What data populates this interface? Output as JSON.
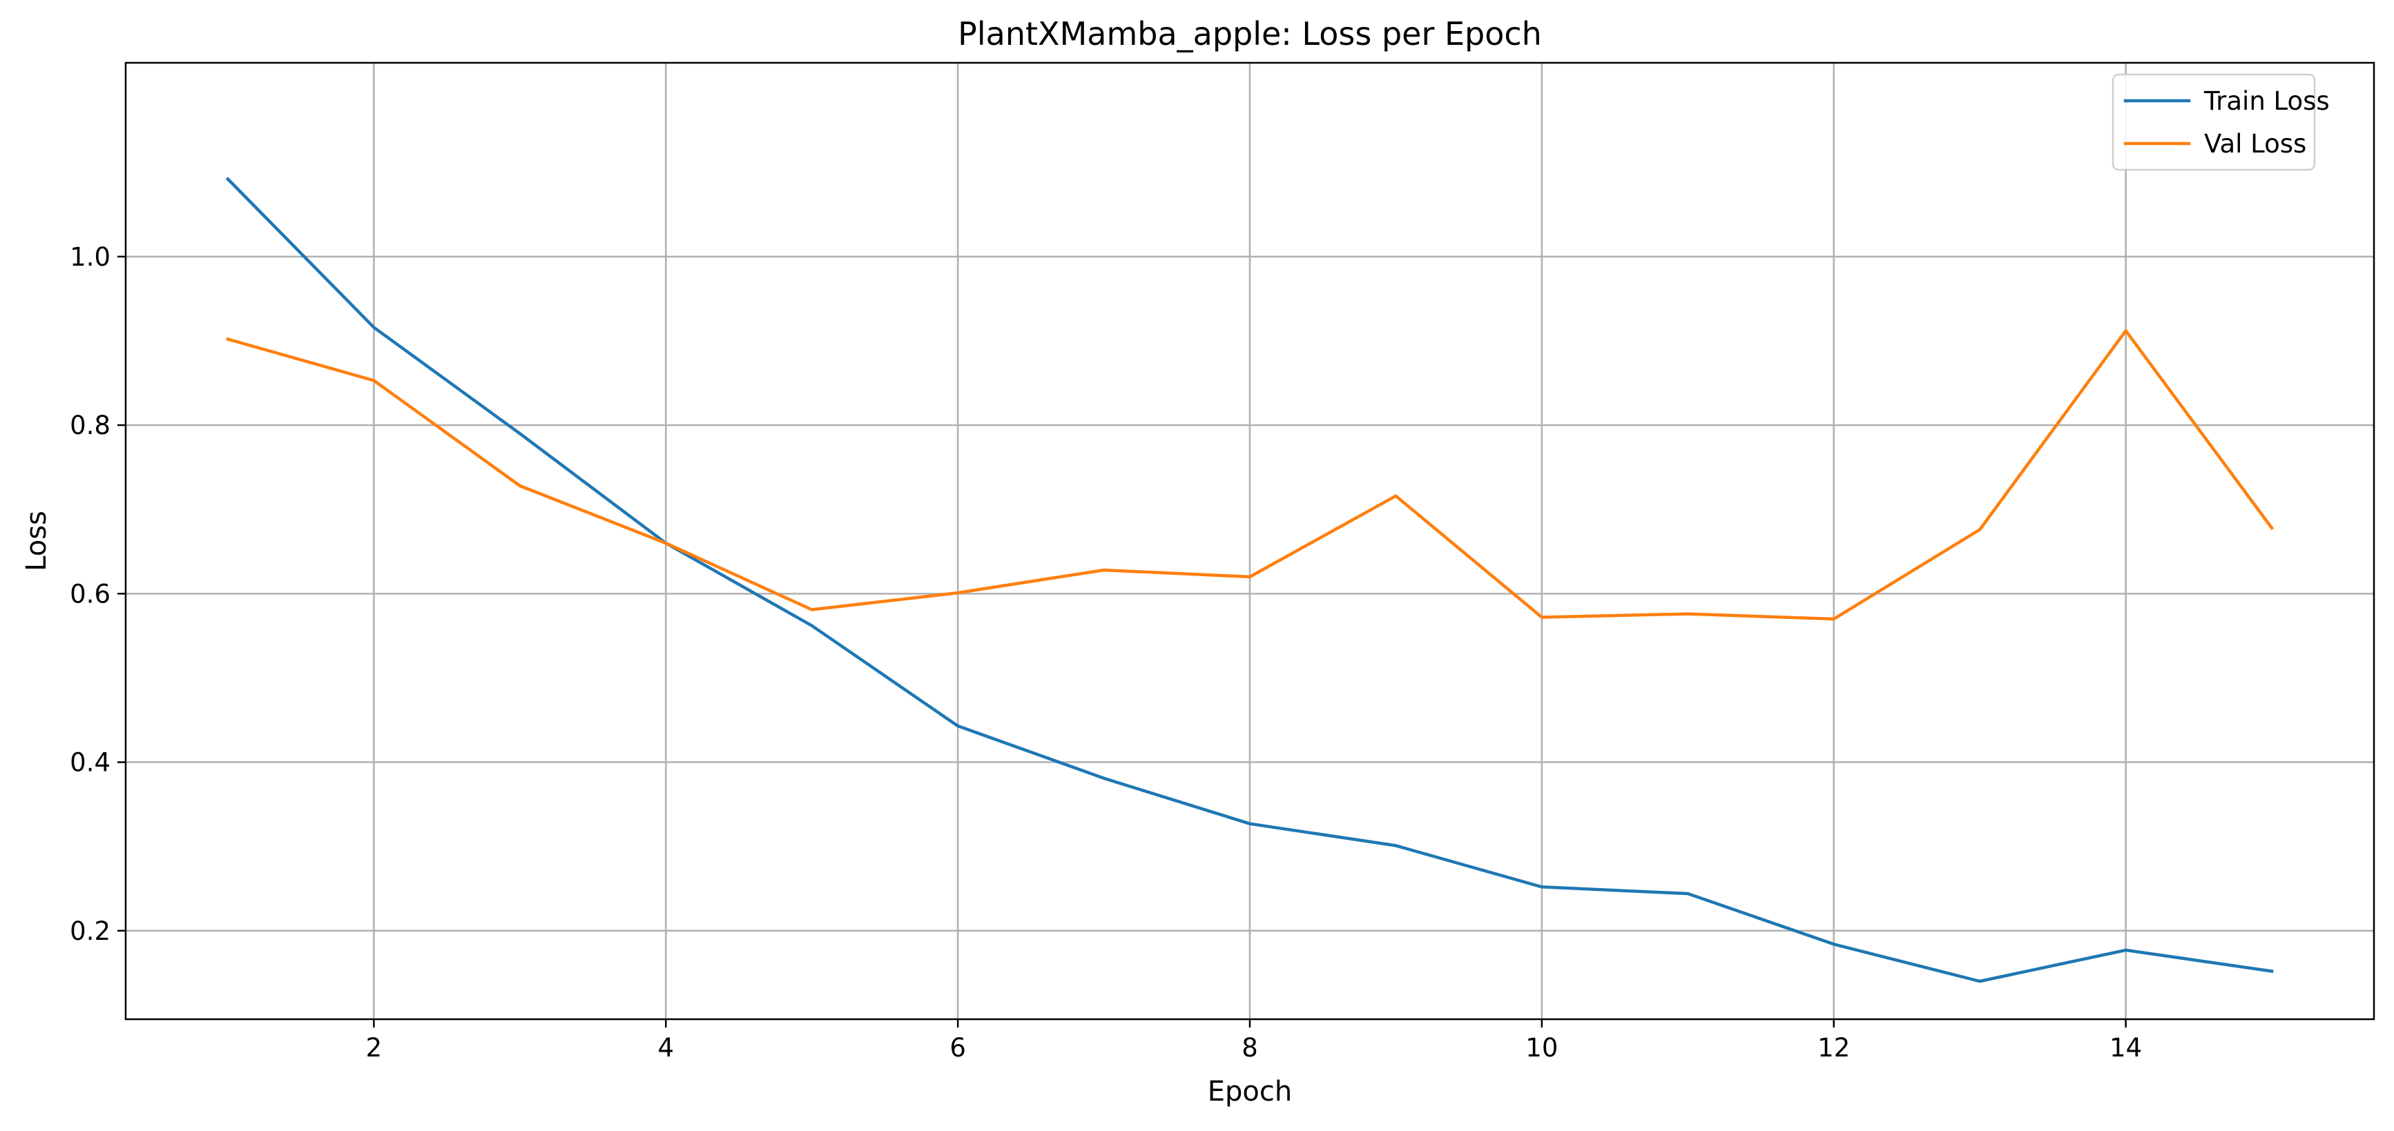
{
  "chart_data": {
    "type": "line",
    "title": "PlantXMamba_apple: Loss per Epoch",
    "xlabel": "Epoch",
    "ylabel": "Loss",
    "xlim": [
      0.3,
      15.7
    ],
    "ylim": [
      0.095,
      1.23
    ],
    "x_ticks": [
      2,
      4,
      6,
      8,
      10,
      12,
      14
    ],
    "y_ticks": [
      0.2,
      0.4,
      0.6,
      0.8,
      1.0
    ],
    "y_tick_labels": [
      "0.2",
      "0.4",
      "0.6",
      "0.8",
      "1.0"
    ],
    "grid": true,
    "legend": "top-right",
    "x": [
      1,
      2,
      3,
      4,
      5,
      6,
      7,
      8,
      9,
      10,
      11,
      12,
      13,
      14,
      15
    ],
    "series": [
      {
        "name": "Train Loss",
        "color": "#1f77b4",
        "values": [
          1.092,
          0.916,
          0.79,
          0.66,
          0.562,
          0.443,
          0.381,
          0.327,
          0.301,
          0.252,
          0.244,
          0.184,
          0.14,
          0.177,
          0.152
        ]
      },
      {
        "name": "Val Loss",
        "color": "#ff7f0e",
        "values": [
          0.902,
          0.853,
          0.728,
          0.66,
          0.581,
          0.601,
          0.628,
          0.62,
          0.716,
          0.572,
          0.576,
          0.57,
          0.676,
          0.912,
          0.678
        ]
      }
    ]
  }
}
